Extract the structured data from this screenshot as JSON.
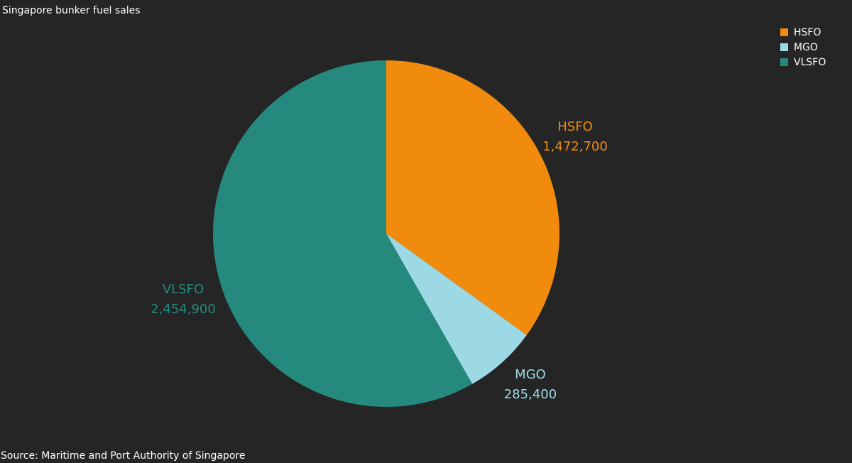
{
  "title": "Singapore bunker fuel sales",
  "source": "Source: Maritime and Port Authority of Singapore",
  "colors": {
    "background": "#252525",
    "HSFO": "#F08B0E",
    "MGO": "#9DD9E4",
    "VLSFO": "#26897D"
  },
  "legend": {
    "position": "top-right",
    "items": [
      {
        "label": "HSFO",
        "color": "#F08B0E"
      },
      {
        "label": "MGO",
        "color": "#9DD9E4"
      },
      {
        "label": "VLSFO",
        "color": "#26897D"
      }
    ]
  },
  "chart_data": {
    "type": "pie",
    "title": "Singapore bunker fuel sales",
    "slices": [
      {
        "name": "HSFO",
        "value": 1472700,
        "label": "1,472,700",
        "color": "#F08B0E"
      },
      {
        "name": "MGO",
        "value": 285400,
        "label": "285,400",
        "color": "#9DD9E4"
      },
      {
        "name": "VLSFO",
        "value": 2454900,
        "label": "2,454,900",
        "color": "#26897D"
      }
    ]
  }
}
